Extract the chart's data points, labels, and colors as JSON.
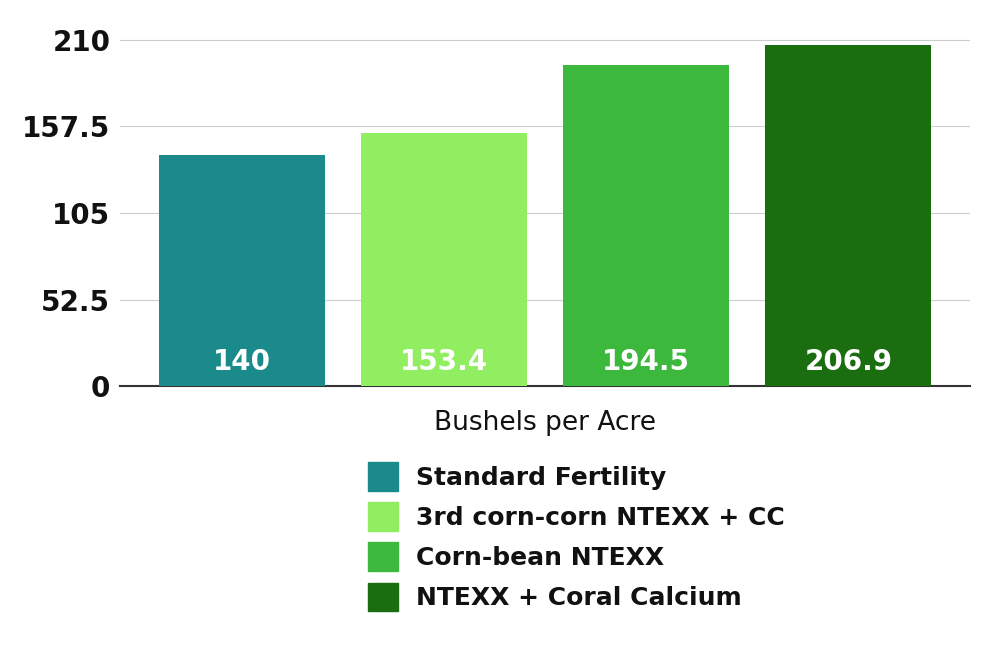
{
  "categories": [
    "Standard Fertility",
    "3rd corn-corn NTEXX + CC",
    "Corn-bean NTEXX",
    "NTEXX + Coral Calcium"
  ],
  "values": [
    140,
    153.4,
    194.5,
    206.9
  ],
  "bar_colors": [
    "#1a8a8a",
    "#90ee60",
    "#3cb83c",
    "#1a6e10"
  ],
  "value_labels": [
    "140",
    "153.4",
    "194.5",
    "206.9"
  ],
  "xlabel": "Bushels per Acre",
  "yticks": [
    0,
    52.5,
    105,
    157.5,
    210
  ],
  "ylim": [
    0,
    222
  ],
  "value_fontsize": 20,
  "tick_fontsize": 20,
  "legend_fontsize": 18,
  "xlabel_fontsize": 19,
  "background_color": "#ffffff",
  "grid_color": "#cccccc",
  "label_color": "#ffffff"
}
